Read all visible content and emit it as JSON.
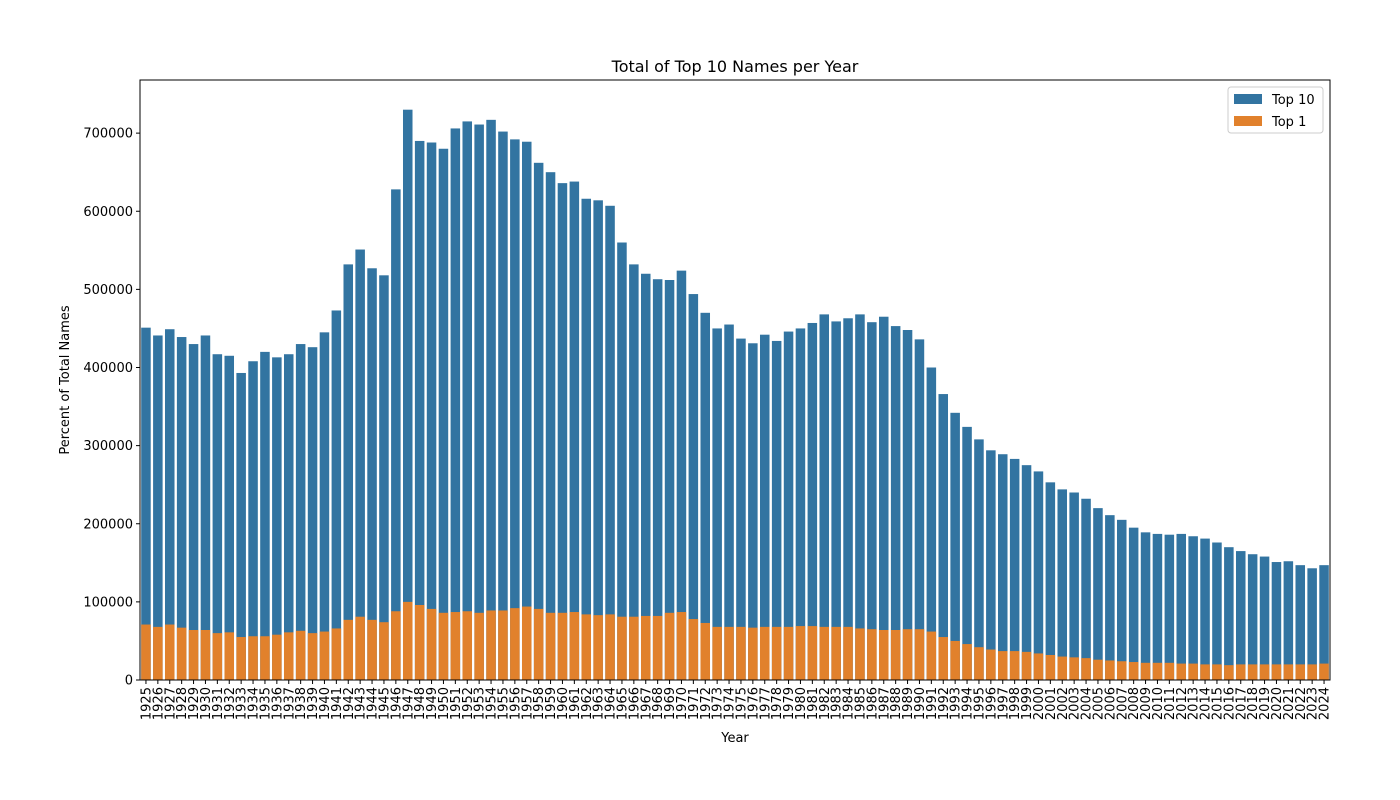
{
  "chart_data": {
    "type": "bar",
    "title": "Total of Top 10 Names per Year",
    "xlabel": "Year",
    "ylabel": "Percent of Total Names",
    "ylim": [
      0,
      768000
    ],
    "yticks": [
      0,
      100000,
      200000,
      300000,
      400000,
      500000,
      600000,
      700000
    ],
    "ytick_labels": [
      "0",
      "100000",
      "200000",
      "300000",
      "400000",
      "500000",
      "600000",
      "700000"
    ],
    "legend_position": "top-right",
    "grid": false,
    "categories": [
      "1925",
      "1926",
      "1927",
      "1928",
      "1929",
      "1930",
      "1931",
      "1932",
      "1933",
      "1934",
      "1935",
      "1936",
      "1937",
      "1938",
      "1939",
      "1940",
      "1941",
      "1942",
      "1943",
      "1944",
      "1945",
      "1946",
      "1947",
      "1948",
      "1949",
      "1950",
      "1951",
      "1952",
      "1953",
      "1954",
      "1955",
      "1956",
      "1957",
      "1958",
      "1959",
      "1960",
      "1961",
      "1962",
      "1963",
      "1964",
      "1965",
      "1966",
      "1967",
      "1968",
      "1969",
      "1970",
      "1971",
      "1972",
      "1973",
      "1974",
      "1975",
      "1976",
      "1977",
      "1978",
      "1979",
      "1980",
      "1981",
      "1982",
      "1983",
      "1984",
      "1985",
      "1986",
      "1987",
      "1988",
      "1989",
      "1990",
      "1991",
      "1992",
      "1993",
      "1994",
      "1995",
      "1996",
      "1997",
      "1998",
      "1999",
      "2000",
      "2001",
      "2002",
      "2003",
      "2004",
      "2005",
      "2006",
      "2007",
      "2008",
      "2009",
      "2010",
      "2011",
      "2012",
      "2013",
      "2014",
      "2015",
      "2016",
      "2017",
      "2018",
      "2019",
      "2020",
      "2021",
      "2022",
      "2023",
      "2024"
    ],
    "series": [
      {
        "name": "Top 10",
        "color": "#3274a1",
        "values": [
          451000,
          441000,
          449000,
          439000,
          430000,
          441000,
          417000,
          415000,
          393000,
          408000,
          420000,
          413000,
          417000,
          430000,
          426000,
          445000,
          473000,
          532000,
          551000,
          527000,
          518000,
          628000,
          730000,
          690000,
          688000,
          680000,
          706000,
          715000,
          711000,
          717000,
          702000,
          692000,
          689000,
          662000,
          650000,
          636000,
          638000,
          616000,
          614000,
          607000,
          560000,
          532000,
          520000,
          513000,
          512000,
          524000,
          494000,
          470000,
          450000,
          455000,
          437000,
          431000,
          442000,
          434000,
          446000,
          450000,
          457000,
          468000,
          459000,
          463000,
          468000,
          458000,
          465000,
          453000,
          448000,
          436000,
          400000,
          366000,
          342000,
          324000,
          308000,
          294000,
          289000,
          283000,
          275000,
          267000,
          253000,
          244000,
          240000,
          232000,
          220000,
          211000,
          205000,
          195000,
          189000,
          187000,
          186000,
          187000,
          184000,
          181000,
          176000,
          170000,
          165000,
          161000,
          158000,
          151000,
          152000,
          147000,
          143000,
          147000
        ]
      },
      {
        "name": "Top 1",
        "color": "#e1812c",
        "values": [
          71000,
          68000,
          71000,
          67000,
          64000,
          64000,
          60000,
          61000,
          55000,
          56000,
          56000,
          58000,
          61000,
          63000,
          60000,
          62000,
          66000,
          77000,
          81000,
          77000,
          74000,
          88000,
          100000,
          96000,
          91000,
          86000,
          87000,
          88000,
          86000,
          89000,
          89000,
          92000,
          94000,
          91000,
          86000,
          86000,
          87000,
          84000,
          83000,
          84000,
          81000,
          81000,
          82000,
          82000,
          86000,
          87000,
          78000,
          73000,
          68000,
          68000,
          68000,
          67000,
          68000,
          68000,
          68000,
          69000,
          69000,
          68000,
          68000,
          68000,
          66000,
          65000,
          64000,
          64000,
          65000,
          65000,
          62000,
          55000,
          50000,
          46000,
          42000,
          39000,
          37000,
          37000,
          36000,
          34000,
          32000,
          30000,
          29000,
          28000,
          26000,
          25000,
          24000,
          23000,
          22000,
          22000,
          22000,
          21000,
          21000,
          20000,
          20000,
          19000,
          20000,
          20000,
          20000,
          20000,
          20000,
          20000,
          20000,
          21000
        ]
      }
    ]
  }
}
